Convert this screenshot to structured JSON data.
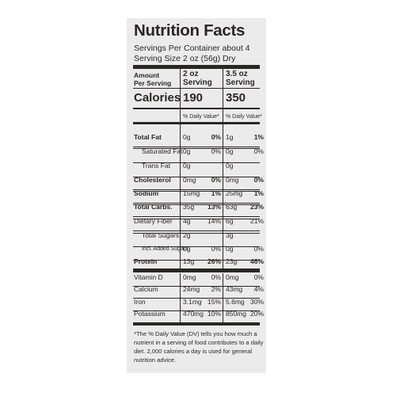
{
  "title": "Nutrition Facts",
  "servings_per_container": "Servings Per Container about 4",
  "serving_size": "Serving Size 2 oz (56g) Dry",
  "header": {
    "amount_line1": "Amount",
    "amount_line2": "Per Serving",
    "col1_line1": "2 oz",
    "col1_line2": "Serving",
    "col2_line1": "3.5 oz",
    "col2_line2": "Serving"
  },
  "calories": {
    "label": "Calories",
    "col1": "190",
    "col2": "350"
  },
  "daily_value_header": {
    "col1": "% Daily Value*",
    "col2": "% Daily Value*"
  },
  "nutrients": [
    {
      "label": "Total Fat",
      "v1": "0g",
      "p1": "0%",
      "v2": "1g",
      "p2": "1%"
    },
    {
      "label": "Saturated Fat",
      "v1": "0g",
      "p1": "0%",
      "v2": "0g",
      "p2": "0%"
    },
    {
      "label": "Trans Fat",
      "v1": "0g",
      "p1": "",
      "v2": "0g",
      "p2": ""
    },
    {
      "label": "Cholesterol",
      "v1": "0mg",
      "p1": "0%",
      "v2": "0mg",
      "p2": "0%"
    },
    {
      "label": "Sodium",
      "v1": "15mg",
      "p1": "1%",
      "v2": "25mg",
      "p2": "1%"
    },
    {
      "label": "Total Carbs.",
      "v1": "35g",
      "p1": "13%",
      "v2": "63g",
      "p2": "23%"
    },
    {
      "label": "Dietary Fiber",
      "v1": "4g",
      "p1": "14%",
      "v2": "6g",
      "p2": "21%"
    },
    {
      "label": "Total Sugars",
      "v1": "2g",
      "p1": "",
      "v2": "3g",
      "p2": ""
    },
    {
      "label": "Incl. Added Sugars",
      "v1": "0g",
      "p1": "0%",
      "v2": "0g",
      "p2": "0%"
    },
    {
      "label": "Protein",
      "v1": "13g",
      "p1": "26%",
      "v2": "23g",
      "p2": "46%"
    }
  ],
  "vitamins": [
    {
      "label": "Vitamin D",
      "v1": "0mg",
      "p1": "0%",
      "v2": "0mg",
      "p2": "0%"
    },
    {
      "label": "Calcium",
      "v1": "24mg",
      "p1": "2%",
      "v2": "43mg",
      "p2": "4%"
    },
    {
      "label": "Iron",
      "v1": "3.1mg",
      "p1": "15%",
      "v2": "5.6mg",
      "p2": "30%"
    },
    {
      "label": "Potassium",
      "v1": "470mg",
      "p1": "10%",
      "v2": "850mg",
      "p2": "20%"
    }
  ],
  "footnote": "*The % Daily Value (DV) tells you how much a nutrient in a serving of food contributes to a daily diet. 2,000 calories a day is used for general nutrition advice."
}
